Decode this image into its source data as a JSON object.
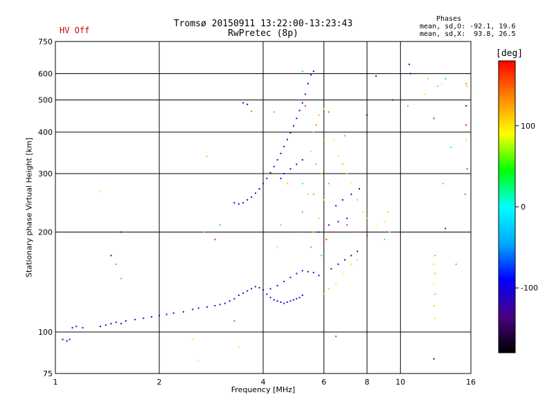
{
  "header": {
    "status": "HV Off",
    "status_color": "#cc0000",
    "title_line1": "Tromsø 20150911 13:22:00-13:23:43",
    "title_line2": "RwPretec (8p)",
    "stats_heading": "Phases",
    "stats_o": "mean, sd,O: -92.1, 19.6",
    "stats_x": "mean, sd,X:  93.8, 26.5"
  },
  "colorbar": {
    "unit": "[deg]",
    "ticks": [
      {
        "label": "100",
        "value": 100
      },
      {
        "label": "0",
        "value": 0
      },
      {
        "label": "-100",
        "value": -100
      }
    ],
    "range": [
      -180,
      180
    ],
    "colors": [
      "#000000",
      "#4b0082",
      "#0000ff",
      "#00aaff",
      "#00ffff",
      "#00ff00",
      "#ffff00",
      "#ff8800",
      "#ff0000"
    ]
  },
  "chart_data": {
    "type": "scatter",
    "xlabel": "Frequency [MHz]",
    "ylabel": "Stationary phase Virtual Height [km]",
    "xscale": "log",
    "yscale": "log",
    "xlim": [
      1,
      16
    ],
    "ylim": [
      75,
      750
    ],
    "grid": true,
    "x_ticks": [
      {
        "label": "1",
        "value": 1
      },
      {
        "label": "2",
        "value": 2
      },
      {
        "label": "4",
        "value": 4
      },
      {
        "label": "6",
        "value": 6
      },
      {
        "label": "8",
        "value": 8
      },
      {
        "label": "10",
        "value": 10
      },
      {
        "label": "16",
        "value": 16
      }
    ],
    "y_ticks": [
      {
        "label": "75",
        "value": 75
      },
      {
        "label": "100",
        "value": 100
      },
      {
        "label": "200",
        "value": 200
      },
      {
        "label": "300",
        "value": 300
      },
      {
        "label": "400",
        "value": 400
      },
      {
        "label": "500",
        "value": 500
      },
      {
        "label": "600",
        "value": 600
      },
      {
        "label": "750",
        "value": 750
      }
    ],
    "series": [
      {
        "points": [
          [
            1.05,
            95,
            -110
          ],
          [
            1.08,
            94,
            -105
          ],
          [
            1.1,
            95,
            -115
          ],
          [
            1.12,
            103,
            -100
          ],
          [
            1.15,
            104,
            -110
          ],
          [
            1.2,
            103,
            -95
          ],
          [
            1.35,
            104,
            -105
          ],
          [
            1.4,
            105,
            -110
          ],
          [
            1.45,
            106,
            -100
          ],
          [
            1.5,
            107,
            -115
          ],
          [
            1.55,
            106,
            -105
          ],
          [
            1.6,
            108,
            -100
          ],
          [
            1.7,
            109,
            -110
          ],
          [
            1.8,
            110,
            -105
          ],
          [
            1.9,
            111,
            -115
          ],
          [
            2.0,
            112,
            -100
          ],
          [
            2.1,
            113,
            -110
          ],
          [
            2.2,
            114,
            -105
          ],
          [
            2.35,
            115,
            -100
          ],
          [
            2.5,
            117,
            -110
          ],
          [
            2.6,
            118,
            -115
          ],
          [
            2.75,
            119,
            -105
          ],
          [
            2.9,
            120,
            -100
          ],
          [
            3.0,
            121,
            -110
          ],
          [
            3.1,
            122,
            -105
          ],
          [
            3.2,
            124,
            -115
          ],
          [
            3.3,
            126,
            -100
          ],
          [
            3.4,
            129,
            -110
          ],
          [
            3.5,
            131,
            -105
          ],
          [
            3.6,
            133,
            -100
          ],
          [
            3.7,
            135,
            -115
          ],
          [
            3.8,
            137,
            -105
          ],
          [
            3.9,
            136,
            -110
          ],
          [
            4.0,
            134,
            -100
          ],
          [
            4.1,
            130,
            -115
          ],
          [
            4.2,
            127,
            -105
          ],
          [
            4.3,
            125,
            -110
          ],
          [
            4.4,
            124,
            -100
          ],
          [
            4.5,
            123,
            -95
          ],
          [
            4.6,
            122,
            -110
          ],
          [
            4.7,
            123,
            -105
          ],
          [
            4.8,
            124,
            -115
          ],
          [
            4.9,
            125,
            -100
          ],
          [
            5.0,
            126,
            -110
          ],
          [
            5.1,
            127,
            -105
          ],
          [
            5.2,
            129,
            -100
          ],
          [
            3.3,
            245,
            -105
          ],
          [
            3.4,
            243,
            -110
          ],
          [
            3.5,
            245,
            -100
          ],
          [
            3.6,
            250,
            -115
          ],
          [
            3.7,
            255,
            -105
          ],
          [
            3.8,
            262,
            -110
          ],
          [
            3.9,
            270,
            -100
          ],
          [
            4.0,
            280,
            -115
          ],
          [
            4.1,
            290,
            -105
          ],
          [
            4.2,
            302,
            -110
          ],
          [
            4.3,
            315,
            -100
          ],
          [
            4.4,
            330,
            -115
          ],
          [
            4.5,
            345,
            -105
          ],
          [
            4.6,
            362,
            -110
          ],
          [
            4.7,
            380,
            -100
          ],
          [
            4.8,
            398,
            -115
          ],
          [
            4.9,
            418,
            -105
          ],
          [
            5.0,
            440,
            -110
          ],
          [
            5.1,
            465,
            -100
          ],
          [
            5.2,
            490,
            -115
          ],
          [
            5.3,
            520,
            -105
          ],
          [
            5.4,
            560,
            -110
          ],
          [
            4.2,
            135,
            -100
          ],
          [
            4.4,
            138,
            -105
          ],
          [
            4.6,
            142,
            -110
          ],
          [
            4.8,
            146,
            -115
          ],
          [
            5.0,
            150,
            -105
          ],
          [
            5.2,
            153,
            -100
          ],
          [
            5.4,
            152,
            -110
          ],
          [
            5.6,
            151,
            -105
          ],
          [
            5.8,
            148,
            -100
          ],
          [
            4.5,
            290,
            -100
          ],
          [
            4.6,
            300,
            -110
          ],
          [
            4.8,
            310,
            -105
          ],
          [
            5.0,
            320,
            -115
          ],
          [
            5.2,
            330,
            -100
          ],
          [
            3.5,
            490,
            -110
          ],
          [
            3.6,
            485,
            -105
          ],
          [
            5.5,
            595,
            -100
          ],
          [
            5.6,
            610,
            -105
          ],
          [
            6.3,
            155,
            -105
          ],
          [
            6.6,
            160,
            -110
          ],
          [
            6.9,
            165,
            -100
          ],
          [
            7.2,
            170,
            -115
          ],
          [
            7.5,
            175,
            -105
          ],
          [
            6.5,
            240,
            -110
          ],
          [
            6.8,
            250,
            -100
          ],
          [
            7.2,
            260,
            -105
          ],
          [
            7.6,
            270,
            -115
          ],
          [
            5.8,
            200,
            -100
          ],
          [
            6.2,
            210,
            -110
          ],
          [
            6.6,
            215,
            -105
          ],
          [
            7.0,
            220,
            -100
          ],
          [
            1.55,
            200,
            -110
          ],
          [
            1.45,
            170,
            -105
          ],
          [
            10.6,
            640,
            -110
          ],
          [
            10.7,
            600,
            -100
          ],
          [
            12.5,
            83,
            -110
          ],
          [
            13.5,
            205,
            -105
          ],
          [
            8.0,
            450,
            -110
          ],
          [
            9.5,
            500,
            -100
          ],
          [
            8.5,
            590,
            -105
          ],
          [
            15.5,
            480,
            -110
          ]
        ]
      },
      {
        "points": [
          [
            5.5,
            180,
            140
          ],
          [
            5.6,
            200,
            120
          ],
          [
            5.8,
            220,
            110
          ],
          [
            6.0,
            250,
            100
          ],
          [
            6.2,
            280,
            130
          ],
          [
            5.9,
            300,
            115
          ],
          [
            5.7,
            320,
            125
          ],
          [
            5.5,
            350,
            105
          ],
          [
            5.6,
            400,
            110
          ],
          [
            5.8,
            450,
            120
          ],
          [
            6.0,
            470,
            95
          ],
          [
            6.4,
            380,
            90
          ],
          [
            6.6,
            340,
            100
          ],
          [
            6.8,
            320,
            115
          ],
          [
            7.0,
            300,
            80
          ],
          [
            7.2,
            280,
            90
          ],
          [
            7.5,
            250,
            110
          ],
          [
            7.8,
            230,
            100
          ],
          [
            8.0,
            220,
            120
          ],
          [
            8.5,
            210,
            90
          ],
          [
            9.0,
            215,
            100
          ],
          [
            9.2,
            230,
            110
          ],
          [
            9.3,
            200,
            85
          ],
          [
            6.0,
            130,
            120
          ],
          [
            6.2,
            135,
            110
          ],
          [
            6.5,
            140,
            100
          ],
          [
            6.8,
            150,
            90
          ],
          [
            7.2,
            160,
            95
          ],
          [
            7.5,
            165,
            100
          ],
          [
            5.0,
            200,
            150
          ],
          [
            5.2,
            230,
            140
          ],
          [
            5.4,
            260,
            110
          ],
          [
            4.7,
            280,
            70
          ],
          [
            4.5,
            210,
            120
          ],
          [
            4.4,
            180,
            100
          ],
          [
            6.1,
            190,
            160
          ],
          [
            6.4,
            200,
            170
          ],
          [
            7.0,
            210,
            165
          ],
          [
            7.5,
            200,
            155
          ],
          [
            8.0,
            195,
            175
          ],
          [
            5.3,
            480,
            160
          ],
          [
            5.7,
            420,
            140
          ],
          [
            6.2,
            460,
            150
          ],
          [
            6.9,
            390,
            130
          ],
          [
            12.5,
            440,
            165
          ],
          [
            12.6,
            170,
            60
          ],
          [
            12.5,
            160,
            80
          ],
          [
            12.6,
            150,
            70
          ],
          [
            12.5,
            140,
            90
          ],
          [
            12.6,
            130,
            60
          ],
          [
            12.5,
            120,
            70
          ],
          [
            12.6,
            110,
            80
          ],
          [
            15.5,
            420,
            170
          ],
          [
            15.6,
            310,
            160
          ],
          [
            15.4,
            260,
            150
          ],
          [
            15.5,
            560,
            140
          ],
          [
            15.6,
            550,
            120
          ],
          [
            15.5,
            380,
            100
          ],
          [
            1.35,
            265,
            90
          ],
          [
            2.75,
            338,
            70
          ],
          [
            2.5,
            95,
            80
          ],
          [
            2.6,
            82,
            90
          ],
          [
            3.4,
            90,
            100
          ],
          [
            11.8,
            520,
            80
          ],
          [
            12.0,
            580,
            110
          ],
          [
            13.2,
            560,
            90
          ],
          [
            3.7,
            462,
            140
          ],
          [
            6.5,
            97,
            165
          ],
          [
            3.3,
            108,
            150
          ],
          [
            2.9,
            190,
            170
          ]
        ]
      },
      {
        "points": [
          [
            1.5,
            160,
            40
          ],
          [
            1.55,
            145,
            20
          ],
          [
            2.7,
            200,
            0
          ],
          [
            3.0,
            210,
            30
          ],
          [
            4.3,
            460,
            50
          ],
          [
            5.2,
            280,
            10
          ],
          [
            5.6,
            260,
            20
          ],
          [
            6.0,
            380,
            30
          ],
          [
            5.9,
            170,
            25
          ],
          [
            12.8,
            550,
            10
          ],
          [
            13.3,
            280,
            15
          ],
          [
            13.5,
            580,
            30
          ],
          [
            14.0,
            360,
            0
          ],
          [
            14.5,
            160,
            40
          ],
          [
            10.5,
            480,
            30
          ],
          [
            9.0,
            190,
            20
          ],
          [
            5.2,
            610,
            40
          ]
        ]
      }
    ]
  }
}
